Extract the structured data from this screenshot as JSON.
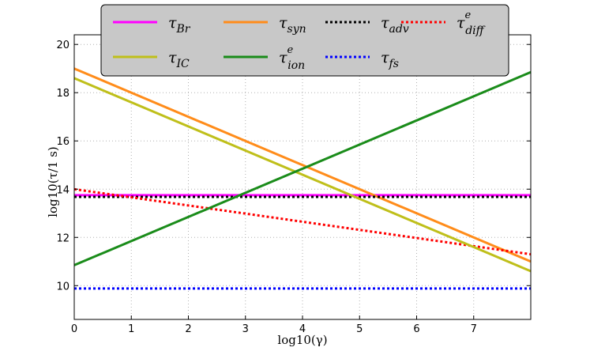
{
  "chart_data": {
    "type": "line",
    "xlabel": "log10(γ)",
    "ylabel": "log10(τ/1 s)",
    "xlim": [
      0,
      8
    ],
    "ylim": [
      8.6,
      20.4
    ],
    "xticks": [
      "0",
      "1",
      "2",
      "3",
      "4",
      "5",
      "6",
      "7"
    ],
    "yticks": [
      "10",
      "12",
      "14",
      "16",
      "18",
      "20"
    ],
    "grid": true,
    "legend_position": "top-center",
    "series": [
      {
        "name": "τ_Br",
        "base": "τ",
        "sub": "Br",
        "sup": "",
        "color": "#ff00ff",
        "style": "solid",
        "x": [
          0,
          8
        ],
        "y": [
          13.75,
          13.75
        ]
      },
      {
        "name": "τ_syn",
        "base": "τ",
        "sub": "syn",
        "sup": "",
        "color": "#ff8c1a",
        "style": "solid",
        "x": [
          0,
          8
        ],
        "y": [
          19.0,
          11.0
        ]
      },
      {
        "name": "τ_adv",
        "base": "τ",
        "sub": "adv",
        "sup": "",
        "color": "#000000",
        "style": "dotted",
        "x": [
          0,
          8
        ],
        "y": [
          13.68,
          13.68
        ]
      },
      {
        "name": "τ_diff^e",
        "base": "τ",
        "sub": "diff",
        "sup": "e",
        "color": "#ff0000",
        "style": "dotted",
        "x": [
          0,
          8
        ],
        "y": [
          14.0,
          11.3
        ]
      },
      {
        "name": "τ_IC",
        "base": "τ",
        "sub": "IC",
        "sup": "",
        "color": "#bfbf1a",
        "style": "solid",
        "x": [
          0,
          8
        ],
        "y": [
          18.6,
          10.6
        ]
      },
      {
        "name": "τ_ion^e",
        "base": "τ",
        "sub": "ion",
        "sup": "e",
        "color": "#1a8c1a",
        "style": "solid",
        "x": [
          0,
          8
        ],
        "y": [
          10.85,
          18.85
        ]
      },
      {
        "name": "τ_fs",
        "base": "τ",
        "sub": "fs",
        "sup": "",
        "color": "#0000ff",
        "style": "dotted",
        "x": [
          0,
          8
        ],
        "y": [
          9.88,
          9.88
        ]
      }
    ]
  }
}
